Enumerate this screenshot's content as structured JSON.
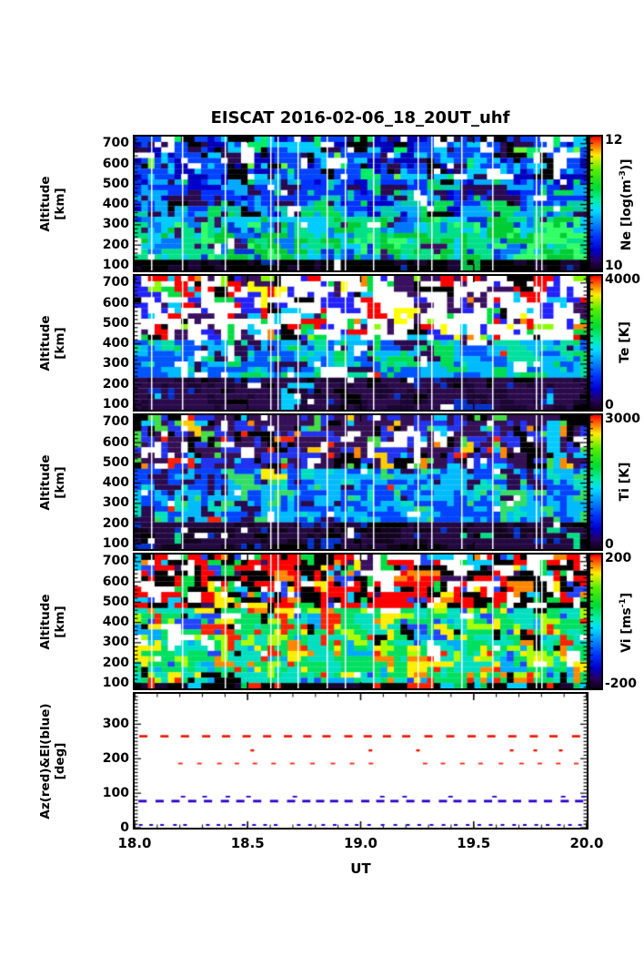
{
  "chart_data": {
    "title": "EISCAT 2016-02-06_18_20UT_uhf",
    "type": [
      "heatmap",
      "heatmap",
      "heatmap",
      "heatmap",
      "scatter"
    ],
    "x_axis": {
      "label": "UT",
      "range": [
        18.0,
        20.0
      ],
      "tick_values": [
        18.0,
        18.5,
        19.0,
        19.5,
        20.0
      ],
      "tick_labels": [
        "18.0",
        "18.5",
        "19.0",
        "19.5",
        "20.0"
      ],
      "minor_step": 0.1
    },
    "colormap_stops": [
      [
        0.0,
        "#0d0015"
      ],
      [
        0.07,
        "#2a0060"
      ],
      [
        0.15,
        "#0000cc"
      ],
      [
        0.25,
        "#0033ff"
      ],
      [
        0.35,
        "#0088ff"
      ],
      [
        0.45,
        "#00ddff"
      ],
      [
        0.52,
        "#00eeaa"
      ],
      [
        0.62,
        "#00dd33"
      ],
      [
        0.75,
        "#55ee00"
      ],
      [
        0.86,
        "#ffee00"
      ],
      [
        0.93,
        "#ff7700"
      ],
      [
        1.0,
        "#ff0000"
      ]
    ],
    "gap_line_fracs": [
      0.036,
      0.105,
      0.2,
      0.3,
      0.315,
      0.36,
      0.425,
      0.465,
      0.527,
      0.625,
      0.655,
      0.722,
      0.79,
      0.887,
      0.9
    ],
    "panels": [
      {
        "id": "ne",
        "kind": "heatmap",
        "seed": 11,
        "ylabel_lines": [
          "Altitude",
          "[km]"
        ],
        "ylim": [
          75,
          735
        ],
        "ytick_values": [
          100,
          200,
          300,
          400,
          500,
          600,
          700
        ],
        "ytick_labels": [
          "100",
          "200",
          "300",
          "400",
          "500",
          "600",
          "700"
        ],
        "y_minor_step": 20,
        "colorbar": {
          "top_label": "12",
          "bottom_label": "10",
          "title_prefix": "Ne [log(m",
          "title_sup": "-3",
          "title_suffix": ")]"
        },
        "bands": [
          {
            "from": 0.0,
            "to": 0.34,
            "palette": [
              [
                "#ffffff",
                1.6,
                1.0
              ],
              [
                "#00ccff",
                2.2,
                2.2
              ],
              [
                "#0044ff",
                2.6,
                2.6
              ],
              [
                "#0000bb",
                1.6,
                1.6
              ],
              [
                "#000000",
                1.2,
                1.2
              ],
              [
                "#2a0a50",
                1.0,
                1.0
              ],
              [
                "#00ee66",
                0.5,
                0.9
              ],
              [
                "#66ff33",
                0.2,
                0.4
              ]
            ]
          },
          {
            "from": 0.34,
            "to": 0.62,
            "palette": [
              [
                "#0033ff",
                3.0,
                2.2
              ],
              [
                "#00aaff",
                2.2,
                2.2
              ],
              [
                "#0000cc",
                1.4,
                1.0
              ],
              [
                "#2a0a50",
                1.2,
                0.8
              ],
              [
                "#00ccaa",
                0.8,
                1.4
              ],
              [
                "#00dd55",
                0.5,
                1.6
              ],
              [
                "#ffffff",
                0.5,
                0.3
              ],
              [
                "#000000",
                0.4,
                0.3
              ]
            ]
          },
          {
            "from": 0.62,
            "to": 0.92,
            "palette": [
              [
                "#00ccff",
                2.0,
                1.4
              ],
              [
                "#00e088",
                2.0,
                3.2
              ],
              [
                "#00cc33",
                1.2,
                3.0
              ],
              [
                "#0077ff",
                1.6,
                0.8
              ],
              [
                "#33ff66",
                0.6,
                1.8
              ],
              [
                "#0033dd",
                0.8,
                0.4
              ],
              [
                "#3a1060",
                1.0,
                0.2
              ],
              [
                "#ffffff",
                0.25,
                0.1
              ]
            ]
          },
          {
            "from": 0.92,
            "to": 1.01,
            "palette": [
              [
                "#000000",
                5.0,
                5.0
              ],
              [
                "#1a0533",
                1.5,
                1.5
              ],
              [
                "#ffffff",
                0.5,
                0.3
              ],
              [
                "#0033aa",
                0.4,
                0.4
              ],
              [
                "#00bb44",
                0.1,
                0.3
              ]
            ]
          }
        ]
      },
      {
        "id": "te",
        "kind": "heatmap",
        "seed": 22,
        "ylabel_lines": [
          "Altitude",
          "[km]"
        ],
        "ylim": [
          75,
          735
        ],
        "ytick_values": [
          100,
          200,
          300,
          400,
          500,
          600,
          700
        ],
        "ytick_labels": [
          "100",
          "200",
          "300",
          "400",
          "500",
          "600",
          "700"
        ],
        "y_minor_step": 20,
        "colorbar": {
          "top_label": "4000",
          "bottom_label": "0",
          "title_prefix": "Te [K]",
          "title_sup": "",
          "title_suffix": ""
        },
        "bands": [
          {
            "from": 0.0,
            "to": 0.48,
            "palette": [
              [
                "#ffffff",
                5.5,
                5.5
              ],
              [
                "#ff0000",
                1.1,
                0.9
              ],
              [
                "#2222ff",
                1.0,
                1.0
              ],
              [
                "#3a1060",
                1.0,
                1.0
              ],
              [
                "#00ccff",
                0.7,
                0.7
              ],
              [
                "#00dd44",
                0.7,
                0.7
              ],
              [
                "#000000",
                0.6,
                0.6
              ],
              [
                "#ff8800",
                0.25,
                0.2
              ],
              [
                "#ffff00",
                0.2,
                0.15
              ],
              [
                "#88ff00",
                0.2,
                0.2
              ]
            ]
          },
          {
            "from": 0.48,
            "to": 0.78,
            "palette": [
              [
                "#00bbff",
                2.6,
                2.6
              ],
              [
                "#0055ff",
                2.0,
                1.6
              ],
              [
                "#00e0a0",
                0.7,
                1.3
              ],
              [
                "#00dd55",
                0.5,
                1.5
              ],
              [
                "#ffffff",
                0.8,
                0.4
              ],
              [
                "#2a0a50",
                0.7,
                0.6
              ],
              [
                "#ff2200",
                0.12,
                0.08
              ]
            ]
          },
          {
            "from": 0.78,
            "to": 1.01,
            "palette": [
              [
                "#2a0a4a",
                4.5,
                4.5
              ],
              [
                "#1a0533",
                2.0,
                2.0
              ],
              [
                "#0033cc",
                0.6,
                0.6
              ],
              [
                "#000000",
                0.6,
                0.6
              ],
              [
                "#ffffff",
                0.35,
                0.2
              ],
              [
                "#00ccff",
                0.15,
                0.15
              ]
            ]
          }
        ]
      },
      {
        "id": "ti",
        "kind": "heatmap",
        "seed": 33,
        "ylabel_lines": [
          "Altitude",
          "[km]"
        ],
        "ylim": [
          75,
          735
        ],
        "ytick_values": [
          100,
          200,
          300,
          400,
          500,
          600,
          700
        ],
        "ytick_labels": [
          "100",
          "200",
          "300",
          "400",
          "500",
          "600",
          "700"
        ],
        "y_minor_step": 20,
        "colorbar": {
          "top_label": "3000",
          "bottom_label": "0",
          "title_prefix": "Ti [K]",
          "title_sup": "",
          "title_suffix": ""
        },
        "bands": [
          {
            "from": 0.0,
            "to": 0.42,
            "palette": [
              [
                "#351055",
                2.8,
                2.8
              ],
              [
                "#2233ee",
                2.4,
                2.4
              ],
              [
                "#000000",
                1.3,
                1.3
              ],
              [
                "#ffffff",
                1.1,
                0.8
              ],
              [
                "#44dd44",
                0.7,
                0.7
              ],
              [
                "#00ccff",
                0.7,
                0.7
              ],
              [
                "#ff2200",
                0.35,
                0.35
              ],
              [
                "#ffcc00",
                0.2,
                0.2
              ],
              [
                "#ff8800",
                0.15,
                0.15
              ]
            ]
          },
          {
            "from": 0.42,
            "to": 0.82,
            "palette": [
              [
                "#0044ff",
                2.8,
                2.4
              ],
              [
                "#00bbff",
                2.4,
                2.8
              ],
              [
                "#00e0c0",
                0.8,
                1.2
              ],
              [
                "#33dd66",
                0.7,
                1.0
              ],
              [
                "#2a0a50",
                0.8,
                0.6
              ],
              [
                "#ffffff",
                0.3,
                0.15
              ],
              [
                "#ff2200",
                0.1,
                0.08
              ],
              [
                "#ffee00",
                0.08,
                0.06
              ]
            ]
          },
          {
            "from": 0.82,
            "to": 1.01,
            "palette": [
              [
                "#240840",
                4.5,
                4.5
              ],
              [
                "#12031f",
                2.0,
                2.0
              ],
              [
                "#0033cc",
                0.7,
                0.7
              ],
              [
                "#000000",
                0.8,
                0.8
              ],
              [
                "#ffffff",
                0.2,
                0.15
              ],
              [
                "#00dd88",
                0.1,
                0.1
              ]
            ]
          }
        ]
      },
      {
        "id": "vi",
        "kind": "heatmap",
        "seed": 44,
        "ylabel_lines": [
          "Altitude",
          "[km]"
        ],
        "ylim": [
          75,
          735
        ],
        "ytick_values": [
          100,
          200,
          300,
          400,
          500,
          600,
          700
        ],
        "ytick_labels": [
          "100",
          "200",
          "300",
          "400",
          "500",
          "600",
          "700"
        ],
        "y_minor_step": 20,
        "colorbar": {
          "top_label": "200",
          "bottom_label": "-200",
          "title_prefix": "Vi [ms",
          "title_sup": "-1",
          "title_suffix": "]"
        },
        "bands": [
          {
            "from": 0.0,
            "to": 0.42,
            "palette": [
              [
                "#ff0000",
                3.0,
                3.0
              ],
              [
                "#000000",
                2.6,
                2.6
              ],
              [
                "#ffffff",
                1.4,
                1.2
              ],
              [
                "#00dd44",
                1.0,
                1.0
              ],
              [
                "#2244ff",
                0.8,
                0.8
              ],
              [
                "#00ccff",
                0.6,
                0.6
              ],
              [
                "#ffee00",
                0.5,
                0.5
              ],
              [
                "#ff8800",
                0.5,
                0.5
              ],
              [
                "#3a1060",
                0.4,
                0.4
              ]
            ]
          },
          {
            "from": 0.42,
            "to": 0.95,
            "palette": [
              [
                "#00e060",
                2.8,
                2.8
              ],
              [
                "#00e0c0",
                2.0,
                2.2
              ],
              [
                "#aaff00",
                0.8,
                0.8
              ],
              [
                "#ffee00",
                1.0,
                1.0
              ],
              [
                "#ff8800",
                0.7,
                0.7
              ],
              [
                "#ff2200",
                0.8,
                0.7
              ],
              [
                "#2244ff",
                0.6,
                0.5
              ],
              [
                "#000000",
                0.6,
                0.5
              ],
              [
                "#00aaff",
                0.6,
                0.6
              ],
              [
                "#ffffff",
                0.3,
                0.2
              ]
            ]
          },
          {
            "from": 0.95,
            "to": 1.01,
            "palette": [
              [
                "#000000",
                3.5,
                3.5
              ],
              [
                "#00cc55",
                0.8,
                0.8
              ],
              [
                "#ff2200",
                0.5,
                0.5
              ],
              [
                "#00ccff",
                0.4,
                0.4
              ],
              [
                "#1a0533",
                0.8,
                0.8
              ]
            ]
          }
        ]
      },
      {
        "id": "azel",
        "kind": "dashes",
        "seed": 55,
        "ylabel_lines": [
          "Az(red)&El(blue)",
          "[deg]"
        ],
        "ylim": [
          0,
          388
        ],
        "ytick_values": [
          0,
          100,
          200,
          300
        ],
        "ytick_labels": [
          "0",
          "100",
          "200",
          "300"
        ],
        "y_minor_step": 10,
        "series": [
          {
            "name": "azimuth-upper",
            "value": 265,
            "color": "#ee1100",
            "dash_w": 9,
            "dash_h": 2.6,
            "period": 23,
            "density": 1.0,
            "seed": 101
          },
          {
            "name": "azimuth-mid",
            "value": 224,
            "color": "#ee1100",
            "dash_w": 4,
            "dash_h": 2.4,
            "period": 26,
            "density": 0.5,
            "seed": 102
          },
          {
            "name": "azimuth-lower",
            "value": 186,
            "color": "#ff2211",
            "dash_w": 5,
            "dash_h": 1.8,
            "period": 21,
            "density": 0.8,
            "seed": 103
          },
          {
            "name": "elevation-upper",
            "value": 90,
            "color": "#2a00cc",
            "dash_w": 5,
            "dash_h": 1.8,
            "period": 24,
            "density": 0.55,
            "seed": 104
          },
          {
            "name": "elevation-main",
            "value": 77,
            "color": "#2a00cc",
            "dash_w": 9,
            "dash_h": 2.8,
            "period": 17,
            "density": 1.0,
            "seed": 105
          },
          {
            "name": "elevation-zero",
            "value": 3,
            "color": "#2a00cc",
            "dash_w": 4,
            "dash_h": 2.0,
            "period": 13,
            "density": 0.85,
            "seed": 106
          }
        ]
      }
    ]
  }
}
